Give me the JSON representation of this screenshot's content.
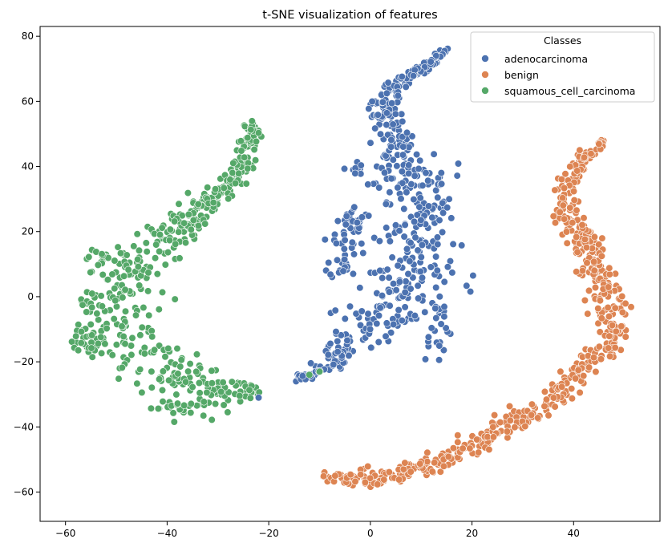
{
  "chart_data": {
    "type": "scatter",
    "title": "t-SNE visualization of features",
    "xlabel": "",
    "ylabel": "",
    "xlim": [
      -65,
      57
    ],
    "ylim": [
      -69,
      83
    ],
    "xticks": [
      -60,
      -40,
      -20,
      0,
      20,
      40
    ],
    "yticks": [
      -60,
      -40,
      -20,
      0,
      20,
      40,
      60,
      80
    ],
    "grid": false,
    "legend": {
      "title": "Classes",
      "placement": "top-right"
    },
    "series": [
      {
        "name": "adenocarcinoma",
        "color": "#4c72b0",
        "spine": [
          [
            -14,
            -25
          ],
          [
            -10,
            -23
          ],
          [
            -6,
            -17
          ],
          [
            -3,
            -12
          ],
          [
            0,
            -8
          ],
          [
            3,
            -5
          ],
          [
            6,
            -2
          ],
          [
            9,
            3
          ],
          [
            10,
            9
          ],
          [
            9,
            15
          ],
          [
            10,
            22
          ],
          [
            9,
            28
          ],
          [
            8,
            34
          ],
          [
            7,
            40
          ],
          [
            6,
            46
          ],
          [
            4,
            52
          ],
          [
            2,
            57
          ],
          [
            3,
            61
          ],
          [
            5,
            64
          ],
          [
            8,
            68
          ],
          [
            12,
            72
          ],
          [
            15,
            76
          ]
        ],
        "spread": [
          0.6,
          1.6,
          2.5,
          3.5,
          4.5,
          5.5,
          6,
          6,
          5.5,
          5.5,
          5,
          5,
          4.5,
          4,
          3.5,
          2.5,
          2,
          1.5,
          1.2,
          1,
          0.8,
          0.5
        ],
        "count": 520,
        "clusters": [
          {
            "center": [
              -3,
              23
            ],
            "rx": 3,
            "ry": 4,
            "count": 30
          },
          {
            "center": [
              -3,
              39
            ],
            "rx": 1.2,
            "ry": 2.2,
            "count": 12
          },
          {
            "center": [
              -5,
              13
            ],
            "rx": 2.5,
            "ry": 7,
            "count": 28
          },
          {
            "center": [
              13,
              -9
            ],
            "rx": 2.5,
            "ry": 9,
            "count": 25
          }
        ]
      },
      {
        "name": "benign",
        "color": "#dd8452",
        "spine": [
          [
            46,
            48
          ],
          [
            42,
            42
          ],
          [
            38,
            34
          ],
          [
            38,
            26
          ],
          [
            41,
            20
          ],
          [
            43,
            13
          ],
          [
            45,
            6
          ],
          [
            47,
            0
          ],
          [
            48,
            -5
          ],
          [
            48,
            -10
          ],
          [
            47,
            -16
          ],
          [
            44,
            -19
          ],
          [
            41,
            -22
          ],
          [
            38,
            -29
          ],
          [
            33,
            -35
          ],
          [
            28,
            -38
          ],
          [
            24,
            -42
          ],
          [
            20,
            -46
          ],
          [
            15,
            -50
          ],
          [
            10,
            -52
          ],
          [
            5,
            -54
          ],
          [
            0,
            -56
          ],
          [
            -5,
            -56
          ],
          [
            -9,
            -55
          ]
        ],
        "spread": [
          0.6,
          1.2,
          1.6,
          1.8,
          1.8,
          2,
          2,
          2.2,
          2.2,
          2.2,
          2,
          2,
          2,
          2.2,
          2.2,
          2.2,
          2.2,
          2.2,
          2,
          2,
          2,
          2,
          1.6,
          1.2
        ],
        "count": 620,
        "clusters": []
      },
      {
        "name": "squamous_cell_carcinoma",
        "color": "#55a868",
        "spine": [
          [
            -23,
            54
          ],
          [
            -24,
            45
          ],
          [
            -26,
            38
          ],
          [
            -31,
            30
          ],
          [
            -35,
            24
          ],
          [
            -39,
            19
          ],
          [
            -44,
            13
          ],
          [
            -48,
            8
          ],
          [
            -51,
            2
          ],
          [
            -50,
            -5
          ],
          [
            -49,
            -11
          ],
          [
            -46,
            -17
          ],
          [
            -41,
            -22
          ],
          [
            -36,
            -26
          ],
          [
            -30,
            -30
          ],
          [
            -25,
            -29
          ],
          [
            -22,
            -28
          ]
        ],
        "spread": [
          0.8,
          1.4,
          1.6,
          2,
          2.6,
          3.2,
          4,
          4.5,
          4.5,
          4.5,
          4.5,
          4.5,
          4.5,
          4,
          3.5,
          2.5,
          1.5
        ],
        "count": 480,
        "clusters": [
          {
            "center": [
              -55,
              -14
            ],
            "rx": 3,
            "ry": 3,
            "count": 35
          },
          {
            "center": [
              -53,
              12
            ],
            "rx": 2,
            "ry": 3,
            "count": 14
          },
          {
            "center": [
              -38,
              -34
            ],
            "rx": 5,
            "ry": 2.5,
            "count": 30
          }
        ]
      }
    ]
  }
}
